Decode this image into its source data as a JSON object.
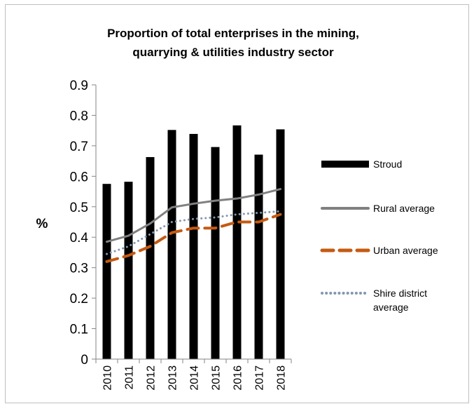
{
  "chart_data": {
    "type": "bar",
    "title_lines": [
      "Proportion of total enterprises in the mining,",
      "quarrying & utilities industry sector"
    ],
    "ylabel": "%",
    "xlabel": "",
    "ylim": [
      0,
      0.9
    ],
    "yticks": [
      "0",
      "0.1",
      "0.2",
      "0.3",
      "0.4",
      "0.5",
      "0.6",
      "0.7",
      "0.8",
      "0.9"
    ],
    "categories": [
      "2010",
      "2011",
      "2012",
      "2013",
      "2014",
      "2015",
      "2016",
      "2017",
      "2018"
    ],
    "grid": false,
    "legend_position": "right",
    "series": [
      {
        "name": "Stroud",
        "kind": "bar",
        "color": "#000000",
        "values": [
          0.575,
          0.582,
          0.663,
          0.752,
          0.739,
          0.696,
          0.767,
          0.671,
          0.754
        ]
      },
      {
        "name": "Rural average",
        "kind": "line",
        "style": "solid",
        "color": "#808080",
        "values": [
          0.385,
          0.405,
          0.445,
          0.498,
          0.51,
          0.52,
          0.527,
          0.54,
          0.558
        ]
      },
      {
        "name": "Urban average",
        "kind": "line",
        "style": "dashed",
        "color": "#c55a11",
        "values": [
          0.32,
          0.34,
          0.37,
          0.415,
          0.43,
          0.43,
          0.45,
          0.45,
          0.475
        ]
      },
      {
        "name": "Shire district average",
        "kind": "line",
        "style": "dotted",
        "color": "#8497b0",
        "values": [
          0.345,
          0.37,
          0.41,
          0.45,
          0.46,
          0.465,
          0.475,
          0.48,
          0.485
        ]
      }
    ],
    "legend_label_lines": [
      [
        "Stroud"
      ],
      [
        "Rural average"
      ],
      [
        "Urban average"
      ],
      [
        "Shire district",
        "average"
      ]
    ]
  }
}
